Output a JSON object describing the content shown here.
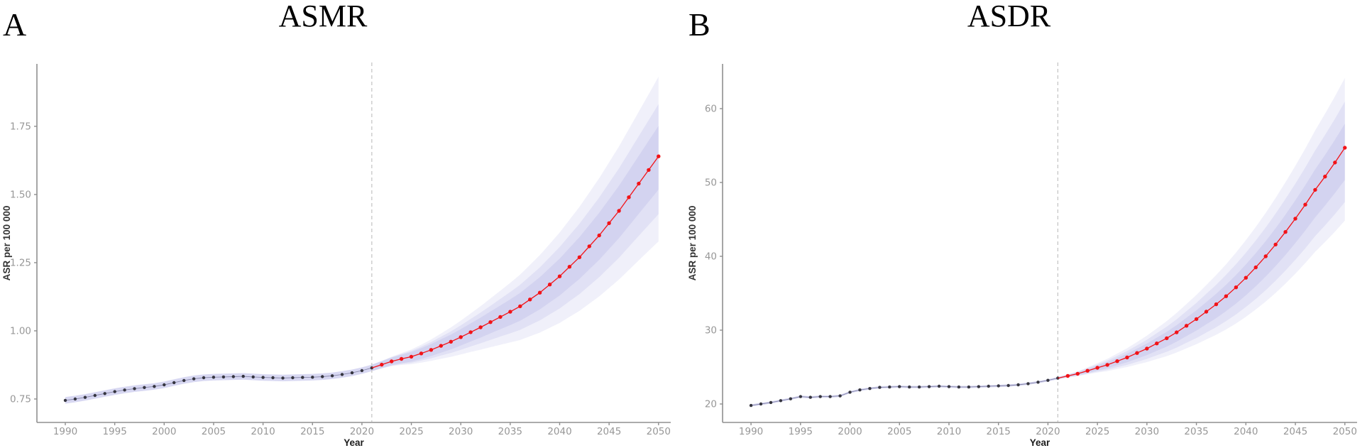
{
  "figure": {
    "panels": [
      {
        "label": "A",
        "title": "ASMR"
      },
      {
        "label": "B",
        "title": "ASDR"
      }
    ]
  },
  "chart_data": [
    {
      "type": "line",
      "panel_label": "A",
      "title": "ASMR",
      "xlabel": "Year",
      "ylabel": "ASR per 100 000",
      "x_tick_years": [
        1990,
        1995,
        2000,
        2005,
        2010,
        2015,
        2020,
        2025,
        2030,
        2035,
        2040,
        2045,
        2050
      ],
      "y_tick_values": [
        0.75,
        1.0,
        1.25,
        1.5,
        1.75
      ],
      "y_tick_labels": [
        "0.75",
        "1.00",
        "1.25",
        "1.50",
        "1.75"
      ],
      "xlim": [
        1987.1,
        2051.6
      ],
      "ylim": [
        0.664,
        1.979
      ],
      "forecast_start_year": 2021,
      "observed": {
        "start_year": 1990,
        "values": [
          0.745,
          0.75,
          0.756,
          0.763,
          0.77,
          0.777,
          0.783,
          0.788,
          0.792,
          0.796,
          0.802,
          0.81,
          0.818,
          0.824,
          0.828,
          0.83,
          0.831,
          0.832,
          0.833,
          0.831,
          0.829,
          0.828,
          0.827,
          0.828,
          0.829,
          0.83,
          0.832,
          0.835,
          0.84,
          0.846,
          0.854,
          0.864
        ]
      },
      "projected": {
        "start_year": 2021,
        "values": [
          0.864,
          0.876,
          0.888,
          0.897,
          0.905,
          0.917,
          0.93,
          0.945,
          0.96,
          0.977,
          0.995,
          1.013,
          1.032,
          1.051,
          1.07,
          1.09,
          1.115,
          1.14,
          1.17,
          1.2,
          1.235,
          1.27,
          1.31,
          1.35,
          1.395,
          1.44,
          1.49,
          1.54,
          1.59,
          1.64
        ]
      },
      "observed_band_halfwidth": 0.012,
      "projection_bands": [
        {
          "name": "outer",
          "lower_2050": 1.34,
          "upper_2050": 1.92
        },
        {
          "name": "middle",
          "lower_2050": 1.44,
          "upper_2050": 1.82
        },
        {
          "name": "inner",
          "lower_2050": 1.53,
          "upper_2050": 1.74
        }
      ],
      "colors": {
        "observed_point": "#35353f",
        "observed_line": "#8585a8",
        "projected": "#f21318",
        "band": "#9898dc",
        "dashed_line": "#c3c3c3",
        "axis": "#8f8f8f",
        "tick_label": "#979797",
        "axis_title": "#1c1c1c"
      }
    },
    {
      "type": "line",
      "panel_label": "B",
      "title": "ASDR",
      "xlabel": "Year",
      "ylabel": "ASR per 100 000",
      "x_tick_years": [
        1990,
        1995,
        2000,
        2005,
        2010,
        2015,
        2020,
        2025,
        2030,
        2035,
        2040,
        2045,
        2050
      ],
      "y_tick_values": [
        20,
        30,
        40,
        50,
        60
      ],
      "y_tick_labels": [
        "20",
        "30",
        "40",
        "50",
        "60"
      ],
      "xlim": [
        1987.1,
        2051.6
      ],
      "ylim": [
        17.5,
        66.06
      ],
      "forecast_start_year": 2021,
      "observed": {
        "start_year": 1990,
        "values": [
          19.8,
          20.0,
          20.2,
          20.45,
          20.7,
          21.0,
          20.9,
          21.0,
          21.0,
          21.1,
          21.6,
          21.9,
          22.1,
          22.25,
          22.3,
          22.35,
          22.3,
          22.3,
          22.35,
          22.4,
          22.35,
          22.3,
          22.3,
          22.35,
          22.4,
          22.45,
          22.5,
          22.6,
          22.75,
          22.95,
          23.2,
          23.5
        ]
      },
      "projected": {
        "start_year": 2021,
        "values": [
          23.5,
          23.8,
          24.1,
          24.5,
          24.9,
          25.3,
          25.8,
          26.3,
          26.9,
          27.5,
          28.2,
          28.9,
          29.7,
          30.6,
          31.5,
          32.5,
          33.5,
          34.6,
          35.8,
          37.1,
          38.5,
          40.0,
          41.6,
          43.3,
          45.1,
          47.0,
          49.0,
          50.8,
          52.7,
          54.7
        ]
      },
      "observed_band_halfwidth": 0.15,
      "projection_bands": [
        {
          "name": "outer",
          "lower_2050": 45.0,
          "upper_2050": 64.0
        },
        {
          "name": "middle",
          "lower_2050": 47.5,
          "upper_2050": 60.8
        },
        {
          "name": "inner",
          "lower_2050": 50.5,
          "upper_2050": 57.8
        }
      ],
      "colors": {
        "observed_point": "#35353f",
        "observed_line": "#8585a8",
        "projected": "#f21318",
        "band": "#9898dc",
        "dashed_line": "#c3c3c3",
        "axis": "#8f8f8f",
        "tick_label": "#979797",
        "axis_title": "#1c1c1c"
      }
    }
  ]
}
